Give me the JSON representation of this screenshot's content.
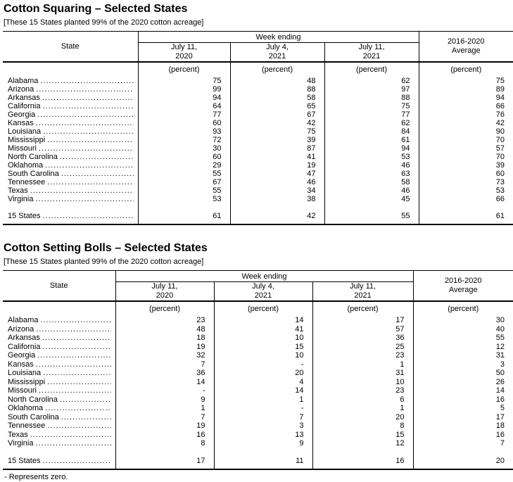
{
  "footnote": "- Represents zero.",
  "tables": [
    {
      "title": "Cotton Squaring – Selected States",
      "subtitle": "[These 15 States planted 99% of the 2020 cotton acreage]",
      "header": {
        "state_label": "State",
        "week_ending_label": "Week ending",
        "week_columns": [
          {
            "line1": "July 11,",
            "line2": "2020"
          },
          {
            "line1": "July 4,",
            "line2": "2021"
          },
          {
            "line1": "July 11,",
            "line2": "2021"
          }
        ],
        "average": {
          "line1": "2016-2020",
          "line2": "Average"
        },
        "unit_label": "(percent)"
      },
      "rows": [
        {
          "state": "Alabama",
          "values": [
            "75",
            "48",
            "62",
            "75"
          ]
        },
        {
          "state": "Arizona",
          "values": [
            "99",
            "88",
            "97",
            "89"
          ]
        },
        {
          "state": "Arkansas",
          "values": [
            "94",
            "58",
            "88",
            "94"
          ]
        },
        {
          "state": "California",
          "values": [
            "64",
            "65",
            "75",
            "66"
          ]
        },
        {
          "state": "Georgia",
          "values": [
            "77",
            "67",
            "77",
            "76"
          ]
        },
        {
          "state": "Kansas",
          "values": [
            "60",
            "42",
            "62",
            "42"
          ]
        },
        {
          "state": "Louisiana",
          "values": [
            "93",
            "75",
            "84",
            "90"
          ]
        },
        {
          "state": "Mississippi",
          "values": [
            "72",
            "39",
            "61",
            "70"
          ]
        },
        {
          "state": "Missouri",
          "values": [
            "30",
            "87",
            "94",
            "57"
          ]
        },
        {
          "state": "North Carolina",
          "values": [
            "60",
            "41",
            "53",
            "70"
          ]
        },
        {
          "state": "Oklahoma",
          "values": [
            "29",
            "19",
            "46",
            "39"
          ]
        },
        {
          "state": "South Carolina",
          "values": [
            "55",
            "47",
            "63",
            "60"
          ]
        },
        {
          "state": "Tennessee",
          "values": [
            "67",
            "46",
            "58",
            "73"
          ]
        },
        {
          "state": "Texas",
          "values": [
            "55",
            "34",
            "46",
            "53"
          ]
        },
        {
          "state": "Virginia",
          "values": [
            "53",
            "38",
            "45",
            "66"
          ]
        }
      ],
      "total_row": {
        "state": "15 States",
        "values": [
          "61",
          "42",
          "55",
          "61"
        ]
      }
    },
    {
      "title": "Cotton Setting Bolls – Selected States",
      "subtitle": "[These 15 States planted 99% of the 2020 cotton acreage]",
      "header": {
        "state_label": "State",
        "week_ending_label": "Week ending",
        "week_columns": [
          {
            "line1": "July 11,",
            "line2": "2020"
          },
          {
            "line1": "July 4,",
            "line2": "2021"
          },
          {
            "line1": "July 11,",
            "line2": "2021"
          }
        ],
        "average": {
          "line1": "2016-2020",
          "line2": "Average"
        },
        "unit_label": "(percent)"
      },
      "rows": [
        {
          "state": "Alabama",
          "values": [
            "23",
            "14",
            "17",
            "30"
          ]
        },
        {
          "state": "Arizona",
          "values": [
            "48",
            "41",
            "57",
            "40"
          ]
        },
        {
          "state": "Arkansas",
          "values": [
            "18",
            "10",
            "36",
            "55"
          ]
        },
        {
          "state": "California",
          "values": [
            "19",
            "15",
            "25",
            "12"
          ]
        },
        {
          "state": "Georgia",
          "values": [
            "32",
            "10",
            "23",
            "31"
          ]
        },
        {
          "state": "Kansas",
          "values": [
            "7",
            "-",
            "1",
            "3"
          ]
        },
        {
          "state": "Louisiana",
          "values": [
            "36",
            "20",
            "31",
            "50"
          ]
        },
        {
          "state": "Mississippi",
          "values": [
            "14",
            "4",
            "10",
            "26"
          ]
        },
        {
          "state": "Missouri",
          "values": [
            "-",
            "14",
            "23",
            "14"
          ]
        },
        {
          "state": "North Carolina",
          "values": [
            "9",
            "1",
            "6",
            "16"
          ]
        },
        {
          "state": "Oklahoma",
          "values": [
            "1",
            "-",
            "1",
            "5"
          ]
        },
        {
          "state": "South Carolina",
          "values": [
            "7",
            "7",
            "20",
            "17"
          ]
        },
        {
          "state": "Tennessee",
          "values": [
            "19",
            "3",
            "8",
            "18"
          ]
        },
        {
          "state": "Texas",
          "values": [
            "16",
            "13",
            "15",
            "16"
          ]
        },
        {
          "state": "Virginia",
          "values": [
            "8",
            "9",
            "12",
            "7"
          ]
        }
      ],
      "total_row": {
        "state": "15 States",
        "values": [
          "17",
          "11",
          "16",
          "20"
        ]
      }
    }
  ]
}
